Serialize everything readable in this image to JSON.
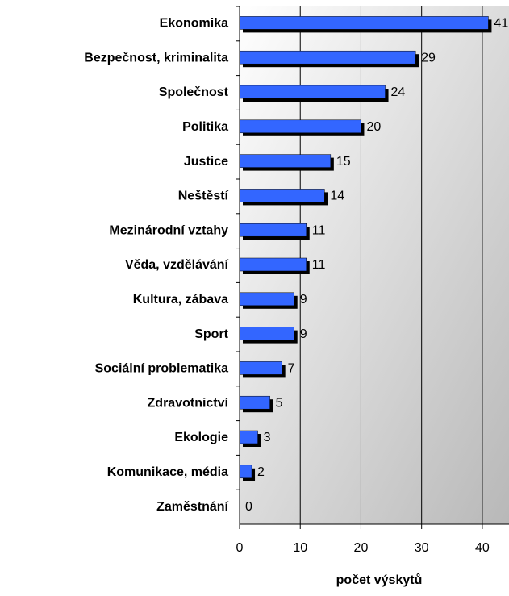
{
  "chart_data": {
    "type": "bar",
    "orientation": "horizontal",
    "x_label": "počet výskytů",
    "categories": [
      "Ekonomika",
      "Bezpečnost, kriminalita",
      "Společnost",
      "Politika",
      "Justice",
      "Neštěstí",
      "Mezinárodní vztahy",
      "Věda, vzdělávání",
      "Kultura, zábava",
      "Sport",
      "Sociální problematika",
      "Zdravotnictví",
      "Ekologie",
      "Komunikace, média",
      "Zaměstnání"
    ],
    "values": [
      41,
      29,
      24,
      20,
      15,
      14,
      11,
      11,
      9,
      9,
      7,
      5,
      3,
      2,
      0
    ],
    "color": "#3366ff",
    "xlim": [
      0,
      44
    ],
    "xticks": [
      0,
      10,
      20,
      30,
      40
    ],
    "grid": true
  }
}
